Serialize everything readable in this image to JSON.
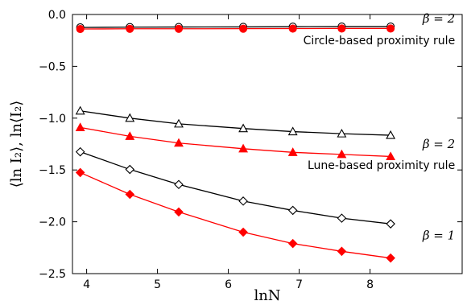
{
  "chart_data": {
    "type": "line",
    "title": "",
    "xlabel": "lnN",
    "ylabel": "⟨ln I₂⟩, ln⟨I₂⟩",
    "xlim": [
      3.8,
      9.3
    ],
    "ylim": [
      -2.5,
      0.0
    ],
    "x_ticks": [
      4,
      5,
      6,
      7,
      8
    ],
    "y_ticks": [
      0.0,
      -0.5,
      -1.0,
      -1.5,
      -2.0,
      -2.5
    ],
    "x_tick_labels": [
      "4",
      "5",
      "6",
      "7",
      "8"
    ],
    "y_tick_labels": [
      "0.0",
      "−0.5",
      "−1.0",
      "−1.5",
      "−2.0",
      "−2.5"
    ],
    "x": [
      3.91,
      4.61,
      5.3,
      6.21,
      6.91,
      7.6,
      8.29
    ],
    "series": [
      {
        "marker": "circle-open",
        "color": "#000000",
        "values": [
          -0.125,
          -0.122,
          -0.121,
          -0.12,
          -0.118,
          -0.117,
          -0.117
        ]
      },
      {
        "marker": "circle-filled",
        "color": "#ff0000",
        "values": [
          -0.14,
          -0.138,
          -0.138,
          -0.137,
          -0.136,
          -0.135,
          -0.135
        ]
      },
      {
        "marker": "triangle-open",
        "color": "#000000",
        "values": [
          -0.93,
          -1.0,
          -1.055,
          -1.1,
          -1.13,
          -1.15,
          -1.165
        ]
      },
      {
        "marker": "triangle-filled",
        "color": "#ff0000",
        "values": [
          -1.09,
          -1.175,
          -1.24,
          -1.295,
          -1.33,
          -1.35,
          -1.37
        ]
      },
      {
        "marker": "diamond-open",
        "color": "#000000",
        "values": [
          -1.325,
          -1.495,
          -1.64,
          -1.8,
          -1.89,
          -1.965,
          -2.02
        ]
      },
      {
        "marker": "diamond-filled",
        "color": "#ff0000",
        "values": [
          -1.525,
          -1.735,
          -1.905,
          -2.1,
          -2.21,
          -2.285,
          -2.35
        ]
      }
    ],
    "annotations": [
      {
        "text": "β = 2",
        "x": 9.2,
        "y": -0.04,
        "style": "math"
      },
      {
        "text": "Circle-based proximity rule",
        "x": 9.2,
        "y": -0.25,
        "style": "text"
      },
      {
        "text": "β = 2",
        "x": 9.2,
        "y": -1.25,
        "style": "math"
      },
      {
        "text": "Lune-based proximity rule",
        "x": 9.2,
        "y": -1.45,
        "style": "text"
      },
      {
        "text": "β = 1",
        "x": 9.2,
        "y": -2.13,
        "style": "math"
      }
    ],
    "grid": false,
    "legend": "none"
  }
}
